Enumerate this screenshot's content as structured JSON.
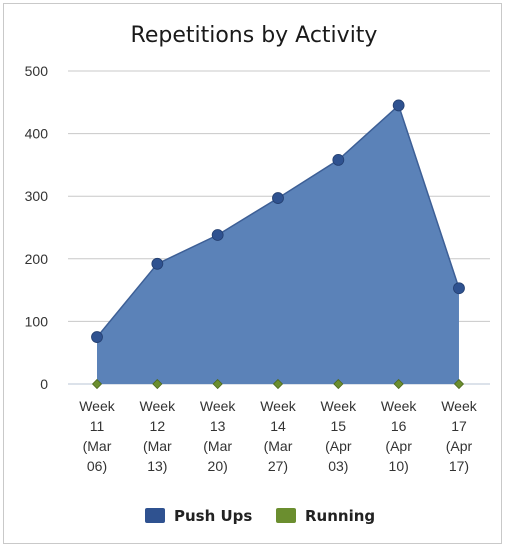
{
  "chart_data": {
    "type": "area",
    "title": "Repetitions by Activity",
    "xlabel": "",
    "ylabel": "",
    "ylim": [
      0,
      500
    ],
    "yticks": [
      0,
      100,
      200,
      300,
      400,
      500
    ],
    "grid": true,
    "legend_position": "bottom",
    "categories": [
      [
        "Week",
        "11",
        "(Mar",
        "06)"
      ],
      [
        "Week",
        "12",
        "(Mar",
        "13)"
      ],
      [
        "Week",
        "13",
        "(Mar",
        "20)"
      ],
      [
        "Week",
        "14",
        "(Mar",
        "27)"
      ],
      [
        "Week",
        "15",
        "(Apr",
        "03)"
      ],
      [
        "Week",
        "16",
        "(Apr",
        "10)"
      ],
      [
        "Week",
        "17",
        "(Apr",
        "17)"
      ]
    ],
    "series": [
      {
        "name": "Push Ups",
        "color": "#5b82b8",
        "marker_color": "#2f5290",
        "values": [
          75,
          192,
          238,
          297,
          358,
          445,
          153
        ]
      },
      {
        "name": "Running",
        "color": "#7a9b3c",
        "marker_color": "#6b8e2f",
        "values": [
          0,
          0,
          0,
          0,
          0,
          0,
          0
        ]
      }
    ]
  }
}
